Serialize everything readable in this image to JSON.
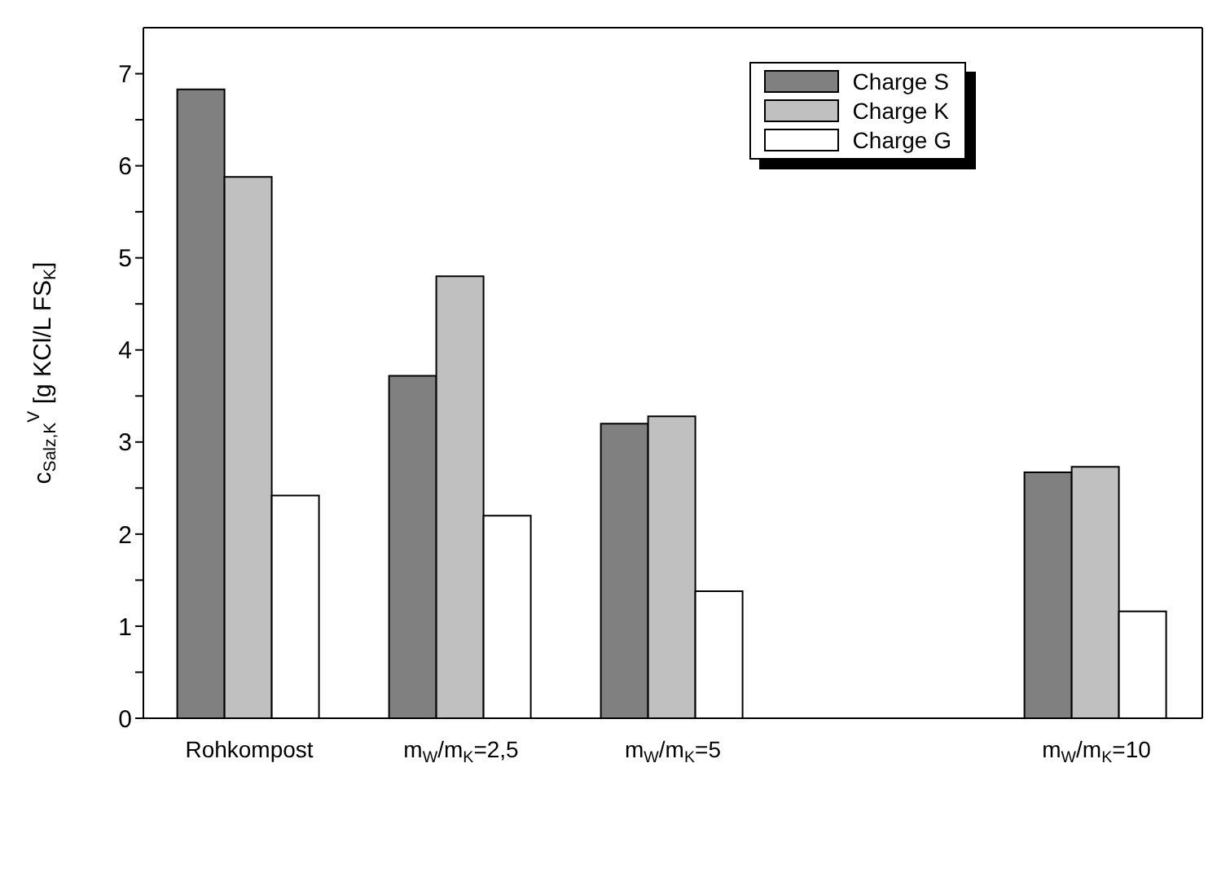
{
  "chart_data": {
    "type": "bar",
    "ylabel": "c$_{Salz,K}$$^{V}$ [g KCl/L FS$_{K}$]",
    "categories": [
      "Rohkompost",
      "m$_{W}$/m$_{K}$=2,5",
      "m$_{W}$/m$_{K}$=5",
      null,
      "m$_{W}$/m$_{K}$=10"
    ],
    "series": [
      {
        "name": "Charge S",
        "color": "#808080",
        "values": [
          6.83,
          3.72,
          3.2,
          null,
          2.67
        ]
      },
      {
        "name": "Charge K",
        "color": "#c0c0c0",
        "values": [
          5.88,
          4.8,
          3.28,
          null,
          2.73
        ]
      },
      {
        "name": "Charge G",
        "color": "#ffffff",
        "values": [
          2.42,
          2.2,
          1.38,
          null,
          1.16
        ]
      }
    ],
    "ylim": [
      0,
      7.5
    ],
    "yticks": [
      0,
      {
        "value": 0.5,
        "label": null
      },
      1,
      {
        "value": 1.5,
        "label": null
      },
      2,
      {
        "value": 2.5,
        "label": null
      },
      3,
      {
        "value": 3.5,
        "label": null
      },
      4,
      {
        "value": 4.5,
        "label": null
      },
      5,
      {
        "value": 5.5,
        "label": null
      },
      6,
      {
        "value": 6.5,
        "label": null
      },
      7
    ],
    "legend": "top right"
  }
}
